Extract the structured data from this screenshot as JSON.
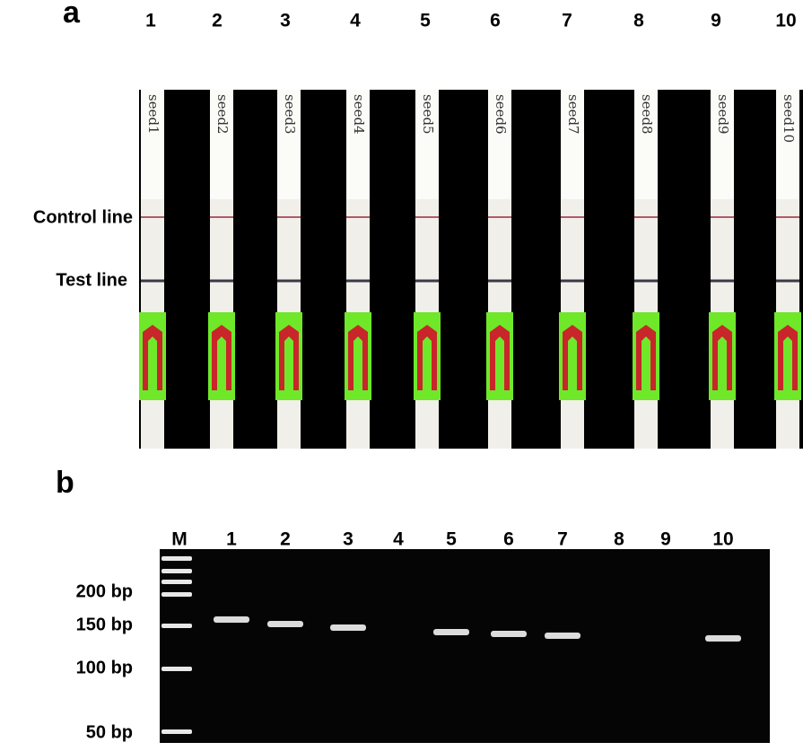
{
  "panel_a": {
    "label": "a",
    "lanes": [
      "1",
      "2",
      "3",
      "4",
      "5",
      "6",
      "7",
      "8",
      "9",
      "10"
    ],
    "strip_notes": [
      "seed1",
      "seed2",
      "seed3",
      "seed4",
      "seed5",
      "seed6",
      "seed7",
      "seed8",
      "seed9",
      "seed10"
    ],
    "row_labels": [
      "Control line",
      "Test line"
    ]
  },
  "panel_b": {
    "label": "b",
    "lanes": [
      "M",
      "1",
      "2",
      "3",
      "4",
      "5",
      "6",
      "7",
      "8",
      "9",
      "10"
    ],
    "ladder_labels": [
      "200 bp",
      "150 bp",
      "100 bp",
      "50 bp"
    ]
  }
}
